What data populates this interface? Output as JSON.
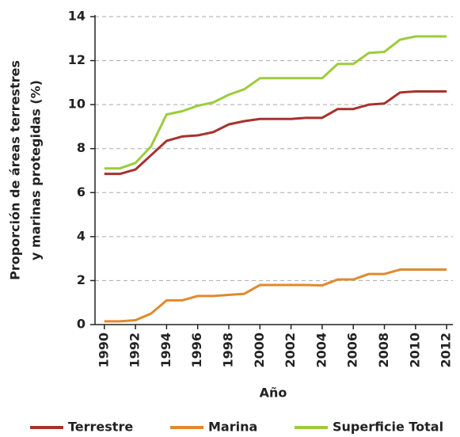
{
  "chart_data": {
    "type": "line",
    "ylabel": [
      "Proporción de áreas terrestres",
      "y marinas protegidas (%)"
    ],
    "xlabel": "Año",
    "x": [
      1990,
      1991,
      1992,
      1993,
      1994,
      1995,
      1996,
      1997,
      1998,
      1999,
      2000,
      2001,
      2002,
      2003,
      2004,
      2005,
      2006,
      2007,
      2008,
      2009,
      2010,
      2011,
      2012
    ],
    "series": [
      {
        "name": "Terrestre",
        "color": "#a6322e",
        "values": [
          6.85,
          6.85,
          7.05,
          7.7,
          8.35,
          8.55,
          8.6,
          8.75,
          9.1,
          9.25,
          9.35,
          9.35,
          9.35,
          9.4,
          9.4,
          9.8,
          9.8,
          10.0,
          10.05,
          10.55,
          10.6,
          10.6,
          10.6
        ]
      },
      {
        "name": "Marina",
        "color": "#e08a2e",
        "values": [
          0.15,
          0.15,
          0.2,
          0.5,
          1.1,
          1.1,
          1.3,
          1.3,
          1.35,
          1.4,
          1.8,
          1.8,
          1.8,
          1.8,
          1.78,
          2.05,
          2.05,
          2.3,
          2.3,
          2.5,
          2.5,
          2.5,
          2.5
        ]
      },
      {
        "name": "Superficie Total",
        "color": "#9dcc3a",
        "values": [
          7.1,
          7.1,
          7.35,
          8.1,
          9.55,
          9.7,
          9.95,
          10.1,
          10.45,
          10.7,
          11.2,
          11.2,
          11.2,
          11.2,
          11.2,
          11.85,
          11.85,
          12.35,
          12.4,
          12.95,
          13.1,
          13.1,
          13.1
        ]
      }
    ],
    "xlim": [
      1989.4,
      2012.4
    ],
    "xticks": [
      1990,
      1992,
      1994,
      1996,
      1998,
      2000,
      2002,
      2004,
      2006,
      2008,
      2010,
      2012
    ],
    "ylim": [
      0,
      14
    ],
    "yticks": [
      0,
      2,
      4,
      6,
      8,
      10,
      12,
      14
    ],
    "grid": true,
    "legend": "bottom"
  }
}
